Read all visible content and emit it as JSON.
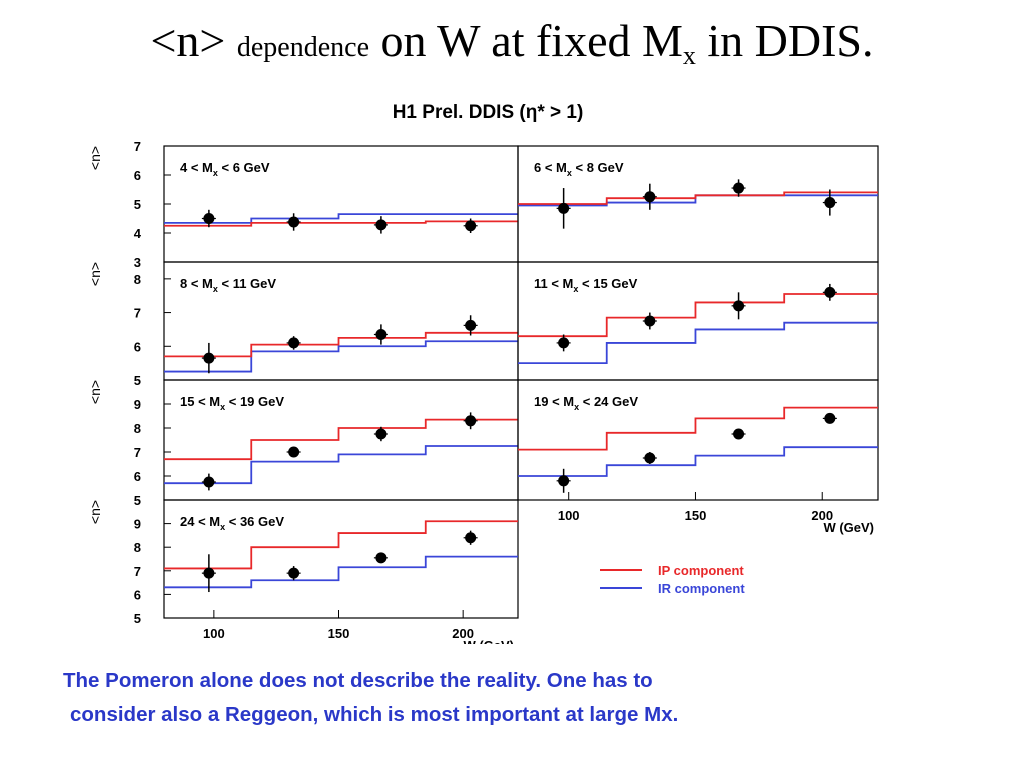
{
  "slide_title": {
    "part1": "<n>",
    "part2": "dependence",
    "part3": "on W at fixed M",
    "subscript": "x",
    "part4": "in DDIS."
  },
  "caption": {
    "line1": "The Pomeron alone does not describe the reality. One has to",
    "line2": "consider also a Reggeon, which is most important at large Mx."
  },
  "colors": {
    "ip": "#e8282a",
    "ir": "#3a46d8",
    "frame": "#000000",
    "data": "#000000"
  },
  "chart_data": {
    "type": "line",
    "title": "H1 Prel. DDIS (η* > 1)",
    "xlabel": "W (GeV)",
    "ylabel": "<n>",
    "x_ticks": [
      100,
      150,
      200
    ],
    "legend": {
      "placement": "bottom-right",
      "entries": [
        "IP component",
        "IR component"
      ]
    },
    "bin_edges": [
      80,
      115,
      150,
      185,
      222
    ],
    "panels": [
      {
        "label": "4 < M_x < 6 GeV",
        "ylim": [
          3,
          7
        ],
        "yticks": [
          3,
          4,
          5,
          6,
          7
        ],
        "points": [
          {
            "x": 98,
            "y": 4.5,
            "err": 0.3
          },
          {
            "x": 132,
            "y": 4.38,
            "err": 0.3
          },
          {
            "x": 167,
            "y": 4.28,
            "err": 0.3
          },
          {
            "x": 203,
            "y": 4.25,
            "err": 0.25
          }
        ],
        "IP": [
          4.25,
          4.35,
          4.35,
          4.4
        ],
        "IR": [
          4.35,
          4.5,
          4.65,
          4.65
        ]
      },
      {
        "label": "6 < M_x < 8 GeV",
        "ylim": [
          3,
          7
        ],
        "yticks": [],
        "points": [
          {
            "x": 98,
            "y": 4.85,
            "err": 0.7
          },
          {
            "x": 132,
            "y": 5.25,
            "err": 0.45
          },
          {
            "x": 167,
            "y": 5.55,
            "err": 0.3
          },
          {
            "x": 203,
            "y": 5.05,
            "err": 0.45
          }
        ],
        "IP": [
          5.0,
          5.2,
          5.3,
          5.4
        ],
        "IR": [
          4.95,
          5.05,
          5.3,
          5.3
        ]
      },
      {
        "label": "8 < M_x < 11 GeV",
        "ylim": [
          5,
          8.5
        ],
        "yticks": [
          5,
          6,
          7,
          8
        ],
        "points": [
          {
            "x": 98,
            "y": 5.65,
            "err": 0.45
          },
          {
            "x": 132,
            "y": 6.1,
            "err": 0.2
          },
          {
            "x": 167,
            "y": 6.35,
            "err": 0.3
          },
          {
            "x": 203,
            "y": 6.62,
            "err": 0.3
          }
        ],
        "IP": [
          5.7,
          6.05,
          6.25,
          6.4
        ],
        "IR": [
          5.25,
          5.85,
          6.0,
          6.15
        ]
      },
      {
        "label": "11 < M_x < 15 GeV",
        "ylim": [
          5,
          8.5
        ],
        "yticks": [],
        "points": [
          {
            "x": 98,
            "y": 6.1,
            "err": 0.25
          },
          {
            "x": 132,
            "y": 6.75,
            "err": 0.25
          },
          {
            "x": 167,
            "y": 7.2,
            "err": 0.4
          },
          {
            "x": 203,
            "y": 7.6,
            "err": 0.25
          }
        ],
        "IP": [
          6.3,
          6.85,
          7.3,
          7.55
        ],
        "IR": [
          5.5,
          6.1,
          6.5,
          6.7
        ]
      },
      {
        "label": "15 < M_x < 19 GeV",
        "ylim": [
          5,
          10
        ],
        "yticks": [
          5,
          6,
          7,
          8,
          9
        ],
        "points": [
          {
            "x": 98,
            "y": 5.75,
            "err": 0.35
          },
          {
            "x": 132,
            "y": 7.0,
            "err": 0.15
          },
          {
            "x": 167,
            "y": 7.75,
            "err": 0.3
          },
          {
            "x": 203,
            "y": 8.3,
            "err": 0.35
          }
        ],
        "IP": [
          6.7,
          7.5,
          8.0,
          8.35
        ],
        "IR": [
          5.7,
          6.6,
          6.9,
          7.25
        ]
      },
      {
        "label": "19 < M_x < 24 GeV",
        "ylim": [
          5,
          10
        ],
        "yticks": [],
        "points": [
          {
            "x": 98,
            "y": 5.8,
            "err": 0.5
          },
          {
            "x": 132,
            "y": 6.75,
            "err": 0.25
          },
          {
            "x": 167,
            "y": 7.75,
            "err": 0.2
          },
          {
            "x": 203,
            "y": 8.4,
            "err": 0.2
          }
        ],
        "IP": [
          7.1,
          7.8,
          8.4,
          8.85
        ],
        "IR": [
          6.0,
          6.45,
          6.85,
          7.2
        ]
      },
      {
        "label": "24 < M_x < 36 GeV",
        "ylim": [
          5,
          10
        ],
        "yticks": [
          5,
          6,
          7,
          8,
          9
        ],
        "points": [
          {
            "x": 98,
            "y": 6.9,
            "err": 0.8
          },
          {
            "x": 132,
            "y": 6.9,
            "err": 0.3
          },
          {
            "x": 167,
            "y": 7.55,
            "err": 0.15
          },
          {
            "x": 203,
            "y": 8.4,
            "err": 0.3
          }
        ],
        "IP": [
          7.1,
          8.0,
          8.6,
          9.1
        ],
        "IR": [
          6.3,
          6.6,
          7.15,
          7.6
        ]
      }
    ]
  }
}
